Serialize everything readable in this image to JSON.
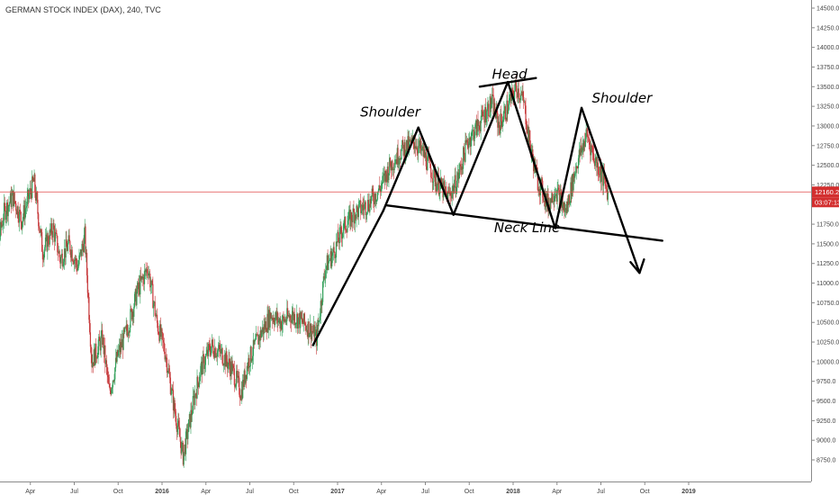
{
  "chart_data": {
    "type": "candlestick",
    "title": "GERMAN STOCK INDEX (DAX), 240, TVC",
    "y_axis": {
      "range": [
        8600,
        14600
      ],
      "ticks": [
        "14500.0",
        "14250.0",
        "14000.0",
        "13750.0",
        "13500.0",
        "13250.0",
        "13000.0",
        "12750.0",
        "12500.0",
        "12250.0",
        "12000.0",
        "11750.0",
        "11500.0",
        "11250.0",
        "11000.0",
        "10750.0",
        "10500.0",
        "10250.0",
        "10000.0",
        "9750.0",
        "9500.0",
        "9250.0",
        "9000.0",
        "8750.0"
      ]
    },
    "x_axis": {
      "ticks": [
        {
          "label": "Apr",
          "year": false
        },
        {
          "label": "Jul",
          "year": false
        },
        {
          "label": "Oct",
          "year": false
        },
        {
          "label": "2016",
          "year": true
        },
        {
          "label": "Apr",
          "year": false
        },
        {
          "label": "Jul",
          "year": false
        },
        {
          "label": "Oct",
          "year": false
        },
        {
          "label": "2017",
          "year": true
        },
        {
          "label": "Apr",
          "year": false
        },
        {
          "label": "Jul",
          "year": false
        },
        {
          "label": "Oct",
          "year": false
        },
        {
          "label": "2018",
          "year": true
        },
        {
          "label": "Apr",
          "year": false
        },
        {
          "label": "Jul",
          "year": false
        },
        {
          "label": "Oct",
          "year": false
        },
        {
          "label": "2019",
          "year": true
        }
      ]
    },
    "current_price": {
      "value": "12160.2",
      "countdown": "03:07:13",
      "level": 12160.2
    },
    "price_path": [
      [
        2015.0,
        10900
      ],
      [
        2015.05,
        11300
      ],
      [
        2015.1,
        11900
      ],
      [
        2015.15,
        12100
      ],
      [
        2015.2,
        11800
      ],
      [
        2015.27,
        12300
      ],
      [
        2015.32,
        11400
      ],
      [
        2015.38,
        11700
      ],
      [
        2015.42,
        11300
      ],
      [
        2015.47,
        11500
      ],
      [
        2015.52,
        11200
      ],
      [
        2015.56,
        11600
      ],
      [
        2015.6,
        10000
      ],
      [
        2015.66,
        10300
      ],
      [
        2015.7,
        9600
      ],
      [
        2015.75,
        10100
      ],
      [
        2015.8,
        10400
      ],
      [
        2015.86,
        10900
      ],
      [
        2015.92,
        11200
      ],
      [
        2015.97,
        10500
      ],
      [
        2016.02,
        10100
      ],
      [
        2016.07,
        9400
      ],
      [
        2016.12,
        8800
      ],
      [
        2016.18,
        9500
      ],
      [
        2016.22,
        9900
      ],
      [
        2016.28,
        10200
      ],
      [
        2016.34,
        10100
      ],
      [
        2016.4,
        9900
      ],
      [
        2016.45,
        9600
      ],
      [
        2016.49,
        10000
      ],
      [
        2016.55,
        10300
      ],
      [
        2016.62,
        10600
      ],
      [
        2016.68,
        10500
      ],
      [
        2016.74,
        10600
      ],
      [
        2016.8,
        10500
      ],
      [
        2016.85,
        10400
      ],
      [
        2016.88,
        10300
      ],
      [
        2016.93,
        11200
      ],
      [
        2016.98,
        11400
      ],
      [
        2017.03,
        11700
      ],
      [
        2017.1,
        11900
      ],
      [
        2017.17,
        12000
      ],
      [
        2017.24,
        12200
      ],
      [
        2017.3,
        12500
      ],
      [
        2017.37,
        12700
      ],
      [
        2017.44,
        12800
      ],
      [
        2017.5,
        12600
      ],
      [
        2017.56,
        12300
      ],
      [
        2017.63,
        12100
      ],
      [
        2017.68,
        12300
      ],
      [
        2017.74,
        12800
      ],
      [
        2017.8,
        13000
      ],
      [
        2017.85,
        13200
      ],
      [
        2017.88,
        13300
      ],
      [
        2017.92,
        13000
      ],
      [
        2017.96,
        13200
      ],
      [
        2018.02,
        13500
      ],
      [
        2018.06,
        13300
      ],
      [
        2018.1,
        12700
      ],
      [
        2018.14,
        12300
      ],
      [
        2018.2,
        12000
      ],
      [
        2018.24,
        12200
      ],
      [
        2018.3,
        11900
      ],
      [
        2018.36,
        12500
      ],
      [
        2018.42,
        12900
      ],
      [
        2018.46,
        12600
      ],
      [
        2018.5,
        12400
      ],
      [
        2018.54,
        12160
      ]
    ],
    "annotations": [
      {
        "text": "Head",
        "x": 2017.98,
        "y": 13600
      },
      {
        "text": "Shoulder",
        "x": 2017.3,
        "y": 13120
      },
      {
        "text": "Shoulder",
        "x": 2018.62,
        "y": 13300
      },
      {
        "text": "Neck Line",
        "x": 2018.08,
        "y": 11650
      }
    ],
    "drawn_lines": [
      {
        "name": "uptrend-line",
        "from": [
          2016.86,
          10210
        ],
        "to": [
          2017.26,
          11920
        ]
      },
      {
        "name": "left-shoulder-up",
        "from": [
          2017.26,
          11920
        ],
        "to": [
          2017.46,
          12980
        ]
      },
      {
        "name": "left-shoulder-down",
        "from": [
          2017.46,
          12980
        ],
        "to": [
          2017.66,
          11870
        ]
      },
      {
        "name": "head-up",
        "from": [
          2017.66,
          11870
        ],
        "to": [
          2017.97,
          13560
        ]
      },
      {
        "name": "head-down",
        "from": [
          2017.97,
          13560
        ],
        "to": [
          2018.24,
          11700
        ]
      },
      {
        "name": "right-shoulder-up",
        "from": [
          2018.24,
          11700
        ],
        "to": [
          2018.39,
          13230
        ]
      },
      {
        "name": "right-shoulder-down",
        "from": [
          2018.39,
          13230
        ],
        "to": [
          2018.72,
          11130
        ]
      },
      {
        "name": "neck-line",
        "from": [
          2017.28,
          11990
        ],
        "to": [
          2018.85,
          11540
        ]
      },
      {
        "name": "head-top-line",
        "from": [
          2017.81,
          13500
        ],
        "to": [
          2018.13,
          13610
        ]
      }
    ],
    "arrowhead": {
      "at": [
        2018.72,
        11130
      ]
    },
    "legend": "none",
    "grid": false
  }
}
